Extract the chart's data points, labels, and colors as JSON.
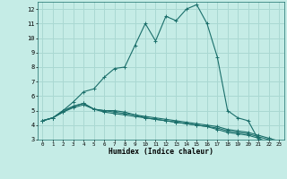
{
  "xlabel": "Humidex (Indice chaleur)",
  "bg_color": "#c5ece6",
  "grid_color": "#aad8d2",
  "line_color": "#1a6e6a",
  "xlim": [
    -0.5,
    23.5
  ],
  "ylim": [
    3,
    12.5
  ],
  "yticks": [
    3,
    4,
    5,
    6,
    7,
    8,
    9,
    10,
    11,
    12
  ],
  "xticks": [
    0,
    1,
    2,
    3,
    4,
    5,
    6,
    7,
    8,
    9,
    10,
    11,
    12,
    13,
    14,
    15,
    16,
    17,
    18,
    19,
    20,
    21,
    22,
    23
  ],
  "series": [
    {
      "x": [
        0,
        1,
        2,
        3,
        4,
        5,
        6,
        7,
        8,
        9,
        10,
        11,
        12,
        13,
        14,
        15,
        16,
        17,
        18,
        19,
        20,
        21,
        22,
        23
      ],
      "y": [
        4.3,
        4.5,
        5.0,
        5.6,
        6.3,
        6.5,
        7.3,
        7.9,
        8.0,
        9.5,
        11.0,
        9.8,
        11.5,
        11.2,
        12.0,
        12.3,
        11.0,
        8.7,
        5.0,
        4.5,
        4.3,
        3.0,
        2.8,
        2.8
      ]
    },
    {
      "x": [
        0,
        1,
        2,
        3,
        4,
        5,
        6,
        7,
        8,
        9,
        10,
        11,
        12,
        13,
        14,
        15,
        16,
        17,
        18,
        19,
        20,
        21,
        22,
        23
      ],
      "y": [
        4.3,
        4.5,
        4.9,
        5.3,
        5.5,
        5.1,
        5.0,
        5.0,
        4.9,
        4.7,
        4.6,
        4.5,
        4.4,
        4.3,
        4.2,
        4.1,
        4.0,
        3.9,
        3.7,
        3.6,
        3.5,
        3.3,
        3.1,
        2.9
      ]
    },
    {
      "x": [
        0,
        1,
        2,
        3,
        4,
        5,
        6,
        7,
        8,
        9,
        10,
        11,
        12,
        13,
        14,
        15,
        16,
        17,
        18,
        19,
        20,
        21,
        22,
        23
      ],
      "y": [
        4.3,
        4.5,
        4.9,
        5.2,
        5.4,
        5.1,
        4.9,
        4.8,
        4.7,
        4.6,
        4.5,
        4.4,
        4.3,
        4.2,
        4.1,
        4.0,
        3.9,
        3.8,
        3.6,
        3.5,
        3.4,
        3.2,
        3.0,
        2.8
      ]
    },
    {
      "x": [
        0,
        1,
        2,
        3,
        4,
        5,
        6,
        7,
        8,
        9,
        10,
        11,
        12,
        13,
        14,
        15,
        16,
        17,
        18,
        19,
        20,
        21,
        22,
        23
      ],
      "y": [
        4.3,
        4.5,
        5.0,
        5.3,
        5.5,
        5.1,
        5.0,
        4.9,
        4.8,
        4.7,
        4.5,
        4.4,
        4.3,
        4.2,
        4.1,
        4.0,
        3.9,
        3.7,
        3.5,
        3.4,
        3.3,
        3.1,
        2.8,
        2.7
      ]
    }
  ]
}
